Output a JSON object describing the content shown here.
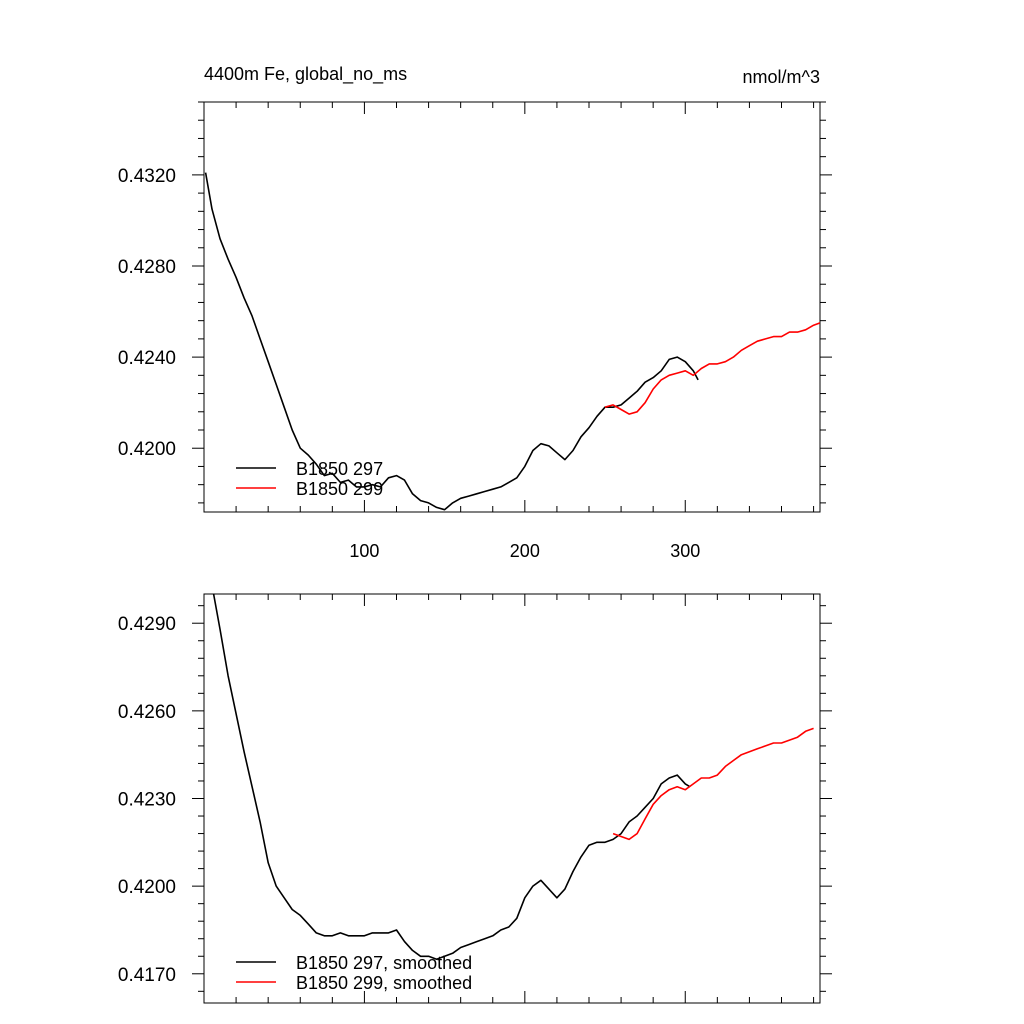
{
  "figure": {
    "title_left": "4400m Fe, global_no_ms",
    "title_right": "nmol/m^3"
  },
  "chart_data": [
    {
      "type": "line",
      "panel": "top",
      "xlim": [
        0,
        384
      ],
      "ylim": [
        0.4172,
        0.4352
      ],
      "x_ticks": [
        100,
        200,
        300
      ],
      "x_tick_labels": [
        "100",
        "200",
        "300"
      ],
      "y_ticks": [
        0.42,
        0.424,
        0.428,
        0.432
      ],
      "y_tick_labels": [
        "0.4200",
        "0.4240",
        "0.4280",
        "0.4320"
      ],
      "grid": false,
      "legend_position": "bottom-left",
      "series": [
        {
          "name": "B1850 297",
          "color": "#000000",
          "x": [
            1,
            5,
            10,
            15,
            20,
            25,
            30,
            35,
            40,
            45,
            50,
            55,
            60,
            65,
            70,
            75,
            80,
            85,
            90,
            95,
            100,
            105,
            110,
            115,
            120,
            125,
            130,
            135,
            140,
            145,
            150,
            155,
            160,
            165,
            170,
            175,
            180,
            185,
            190,
            195,
            200,
            205,
            210,
            215,
            220,
            225,
            230,
            235,
            240,
            245,
            250,
            255,
            260,
            265,
            270,
            275,
            280,
            285,
            290,
            295,
            300,
            305,
            308
          ],
          "y": [
            0.4321,
            0.4305,
            0.4292,
            0.4283,
            0.4275,
            0.4266,
            0.4258,
            0.4248,
            0.4238,
            0.4228,
            0.4218,
            0.4208,
            0.42,
            0.4197,
            0.4193,
            0.4188,
            0.4189,
            0.4185,
            0.4186,
            0.4183,
            0.4183,
            0.4184,
            0.4183,
            0.4187,
            0.4188,
            0.4186,
            0.418,
            0.4177,
            0.4176,
            0.4174,
            0.4173,
            0.4176,
            0.4178,
            0.4179,
            0.418,
            0.4181,
            0.4182,
            0.4183,
            0.4185,
            0.4187,
            0.4192,
            0.4199,
            0.4202,
            0.4201,
            0.4198,
            0.4195,
            0.4199,
            0.4205,
            0.4209,
            0.4214,
            0.4218,
            0.4218,
            0.4219,
            0.4222,
            0.4225,
            0.4229,
            0.4231,
            0.4234,
            0.4239,
            0.424,
            0.4238,
            0.4234,
            0.423
          ]
        },
        {
          "name": "B1850 299",
          "color": "#ff0000",
          "x": [
            250,
            255,
            260,
            265,
            270,
            275,
            280,
            285,
            290,
            295,
            300,
            305,
            310,
            315,
            320,
            325,
            330,
            335,
            340,
            345,
            350,
            355,
            360,
            365,
            370,
            375,
            380,
            384
          ],
          "y": [
            0.4218,
            0.4219,
            0.4217,
            0.4215,
            0.4216,
            0.422,
            0.4226,
            0.423,
            0.4232,
            0.4233,
            0.4234,
            0.4232,
            0.4235,
            0.4237,
            0.4237,
            0.4238,
            0.424,
            0.4243,
            0.4245,
            0.4247,
            0.4248,
            0.4249,
            0.4249,
            0.4251,
            0.4251,
            0.4252,
            0.4254,
            0.4255
          ]
        }
      ]
    },
    {
      "type": "line",
      "panel": "bottom",
      "xlim": [
        0,
        384
      ],
      "ylim": [
        0.416,
        0.43
      ],
      "x_ticks": [
        100,
        200,
        300
      ],
      "x_tick_labels": [
        "",
        "",
        ""
      ],
      "y_ticks": [
        0.417,
        0.42,
        0.423,
        0.426,
        0.429
      ],
      "y_tick_labels": [
        "0.4170",
        "0.4200",
        "0.4230",
        "0.4260",
        "0.4290"
      ],
      "grid": false,
      "legend_position": "bottom-left",
      "series": [
        {
          "name": "B1850 297, smoothed",
          "color": "#000000",
          "x": [
            6,
            10,
            15,
            20,
            25,
            30,
            35,
            40,
            45,
            50,
            55,
            60,
            65,
            70,
            75,
            80,
            85,
            90,
            95,
            100,
            105,
            110,
            115,
            120,
            125,
            130,
            135,
            140,
            145,
            150,
            155,
            160,
            165,
            170,
            175,
            180,
            185,
            190,
            195,
            200,
            205,
            210,
            215,
            220,
            225,
            230,
            235,
            240,
            245,
            250,
            255,
            260,
            265,
            270,
            275,
            280,
            285,
            290,
            295,
            300,
            303
          ],
          "y": [
            0.43,
            0.4288,
            0.4272,
            0.4259,
            0.4246,
            0.4234,
            0.4222,
            0.4208,
            0.42,
            0.4196,
            0.4192,
            0.419,
            0.4187,
            0.4184,
            0.4183,
            0.4183,
            0.4184,
            0.4183,
            0.4183,
            0.4183,
            0.4184,
            0.4184,
            0.4184,
            0.4185,
            0.4181,
            0.4178,
            0.4176,
            0.4176,
            0.4175,
            0.4176,
            0.4177,
            0.4179,
            0.418,
            0.4181,
            0.4182,
            0.4183,
            0.4185,
            0.4186,
            0.4189,
            0.4196,
            0.42,
            0.4202,
            0.4199,
            0.4196,
            0.4199,
            0.4205,
            0.421,
            0.4214,
            0.4215,
            0.4215,
            0.4216,
            0.4218,
            0.4222,
            0.4224,
            0.4227,
            0.423,
            0.4235,
            0.4237,
            0.4238,
            0.4235,
            0.4234
          ]
        },
        {
          "name": "B1850 299, smoothed",
          "color": "#ff0000",
          "x": [
            255,
            260,
            265,
            270,
            275,
            280,
            285,
            290,
            295,
            300,
            305,
            310,
            315,
            320,
            325,
            330,
            335,
            340,
            345,
            350,
            355,
            360,
            365,
            370,
            375,
            380
          ],
          "y": [
            0.4218,
            0.4217,
            0.4216,
            0.4218,
            0.4223,
            0.4228,
            0.4231,
            0.4233,
            0.4234,
            0.4233,
            0.4235,
            0.4237,
            0.4237,
            0.4238,
            0.4241,
            0.4243,
            0.4245,
            0.4246,
            0.4247,
            0.4248,
            0.4249,
            0.4249,
            0.425,
            0.4251,
            0.4253,
            0.4254
          ]
        }
      ]
    }
  ]
}
